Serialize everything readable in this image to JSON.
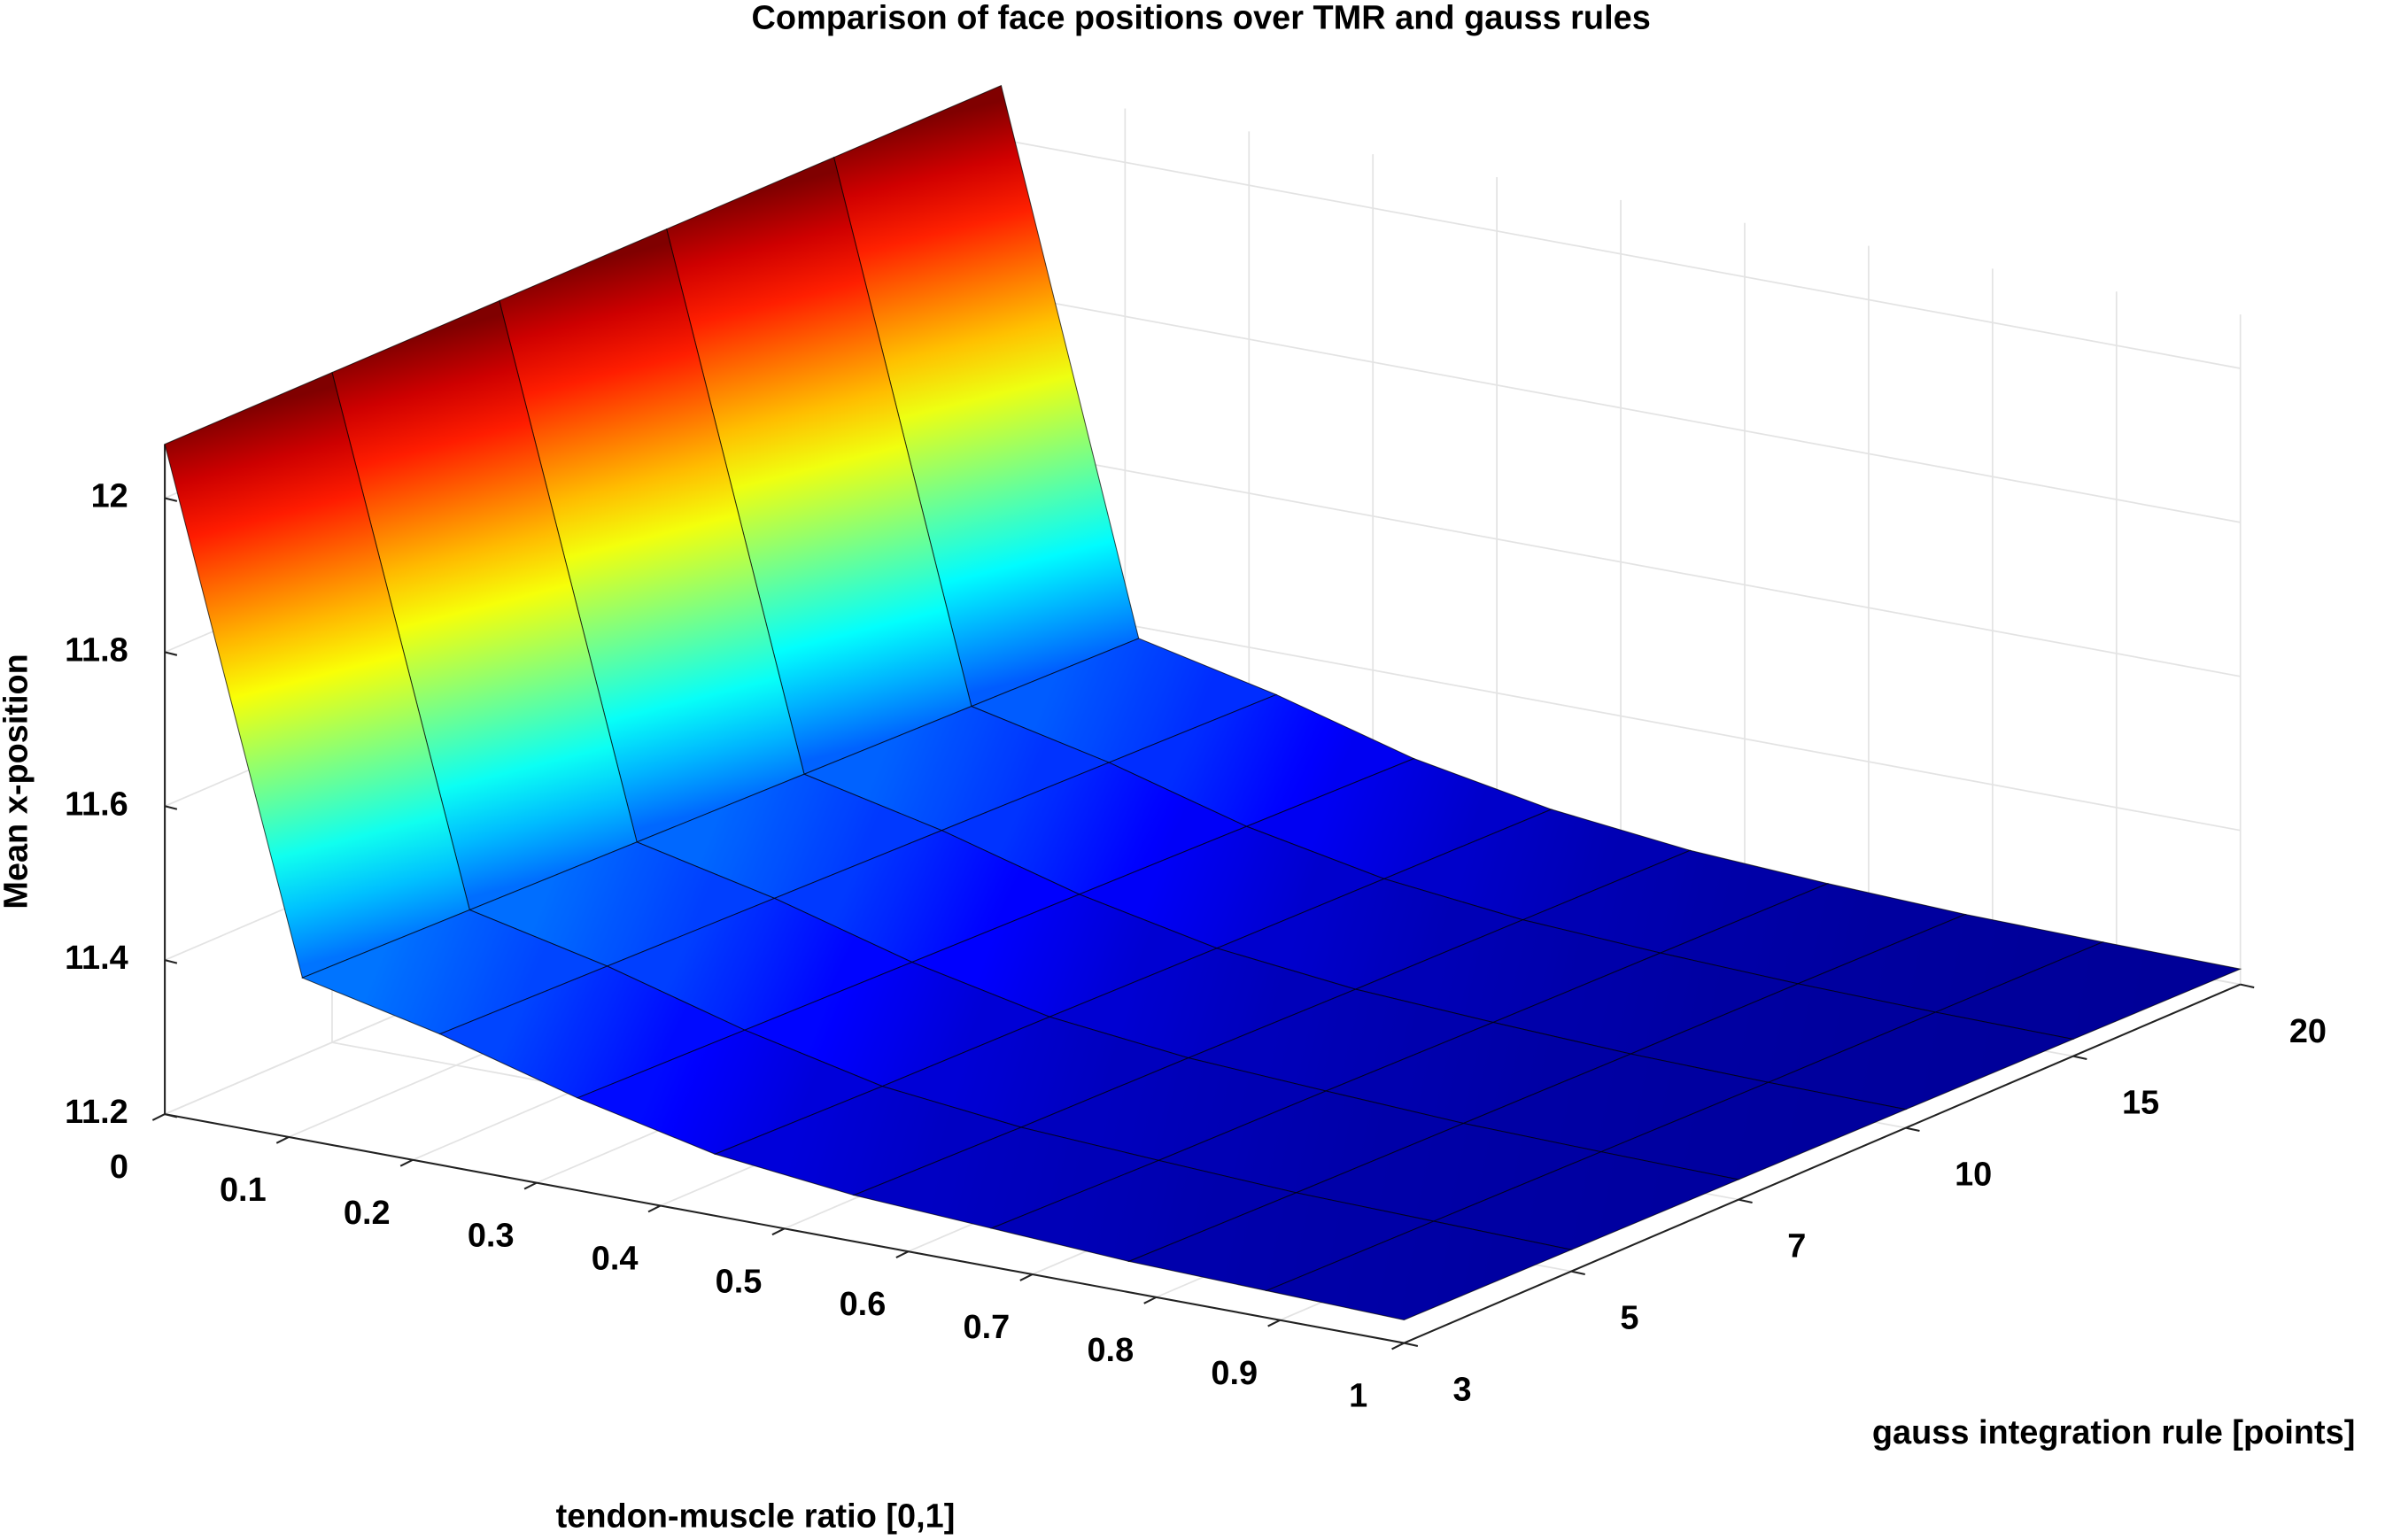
{
  "chart_data": {
    "type": "surface",
    "title": "Comparison of face positions over TMR and gauss rules",
    "xlabel": "tendon-muscle ratio [0,1]",
    "ylabel": "gauss integration rule [points]",
    "zlabel": "Mean x-position",
    "x": [
      0,
      0.111,
      0.222,
      0.333,
      0.444,
      0.556,
      0.667,
      0.778,
      0.889,
      1
    ],
    "categories": [
      3,
      5,
      7,
      10,
      15,
      20
    ],
    "z": [
      [
        12.07,
        11.41,
        11.37,
        11.32,
        11.28,
        11.26,
        11.25,
        11.24,
        11.235,
        11.23
      ],
      [
        12.07,
        11.405,
        11.365,
        11.315,
        11.275,
        11.255,
        11.245,
        11.236,
        11.232,
        11.228
      ],
      [
        12.07,
        11.4,
        11.36,
        11.31,
        11.272,
        11.252,
        11.242,
        11.233,
        11.229,
        11.226
      ],
      [
        12.07,
        11.395,
        11.355,
        11.305,
        11.268,
        11.248,
        11.238,
        11.23,
        11.226,
        11.224
      ],
      [
        12.07,
        11.39,
        11.35,
        11.3,
        11.265,
        11.245,
        11.235,
        11.228,
        11.224,
        11.222
      ],
      [
        12.07,
        11.385,
        11.345,
        11.295,
        11.262,
        11.242,
        11.232,
        11.225,
        11.222,
        11.22
      ]
    ],
    "xlim": [
      0,
      1
    ],
    "xticks": [
      0,
      0.1,
      0.2,
      0.3,
      0.4,
      0.5,
      0.6,
      0.7,
      0.8,
      0.9,
      1
    ],
    "zlim": [
      11.2,
      12.07
    ],
    "zticks": [
      11.2,
      11.4,
      11.6,
      11.8,
      12
    ],
    "colormap": "jet",
    "grid": true,
    "edge_color": "#000000"
  }
}
